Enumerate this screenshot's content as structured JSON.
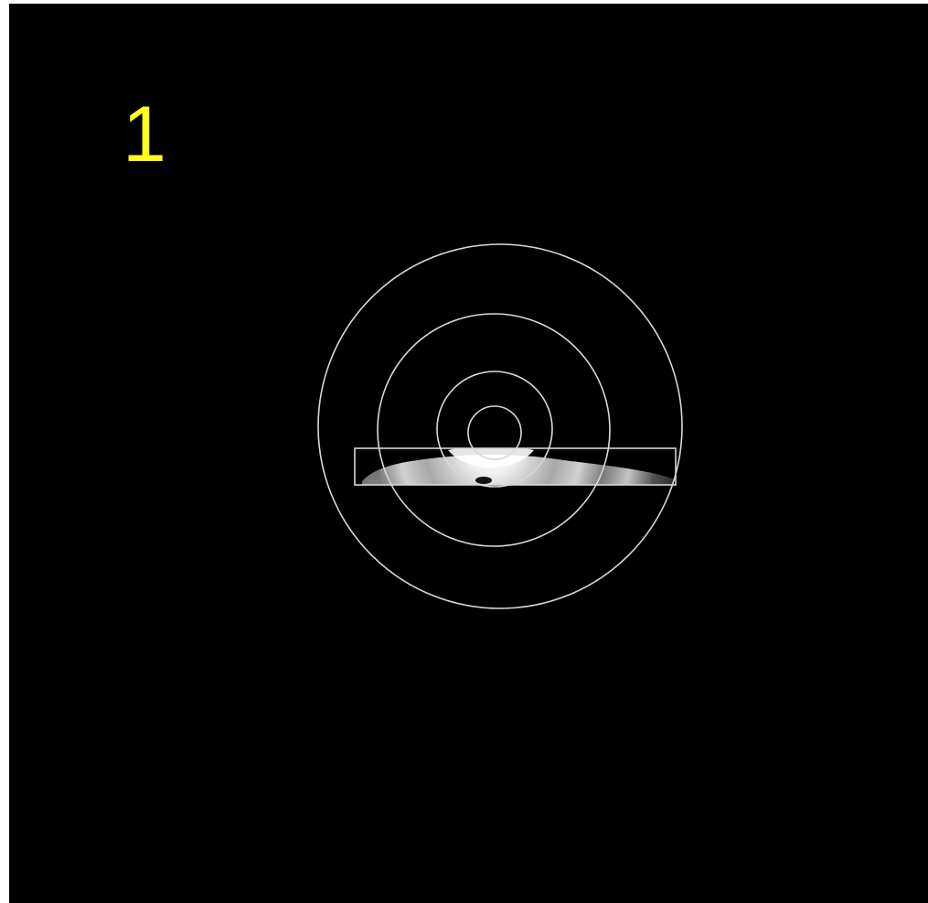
{
  "frame": {
    "number_label": "1",
    "label_color": "#ffff1a",
    "background_color": "#000000",
    "ring_color": "#d8d8d8",
    "ring_count": 4
  }
}
